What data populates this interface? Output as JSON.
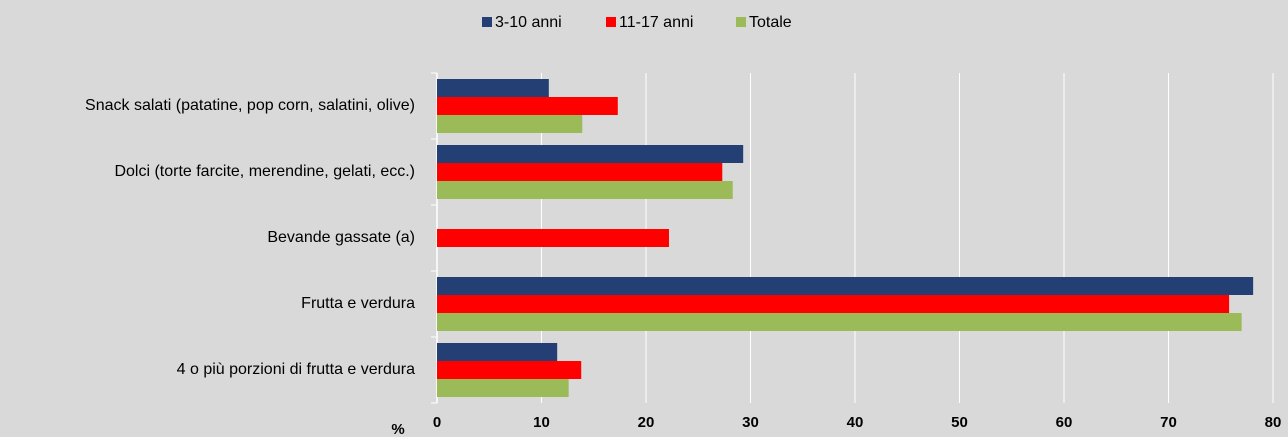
{
  "chart_data": {
    "type": "hbar",
    "categories": [
      "Snack salati (patatine, pop corn, salatini, olive)",
      "Dolci (torte farcite, merendine, gelati, ecc.)",
      "Bevande gassate (a)",
      "Frutta e verdura",
      "4 o più porzioni di frutta e verdura"
    ],
    "series": [
      {
        "name": "3-10 anni",
        "color": "#243f74",
        "values": [
          10.7,
          29.3,
          null,
          78.1,
          11.5
        ]
      },
      {
        "name": "11-17 anni",
        "color": "#ff0000",
        "values": [
          17.3,
          27.3,
          22.2,
          75.8,
          13.8
        ]
      },
      {
        "name": "Totale",
        "color": "#9bbb59",
        "values": [
          13.9,
          28.3,
          null,
          77.0,
          12.6
        ]
      }
    ],
    "x_label": "%",
    "xlim": [
      0,
      80
    ],
    "xticks": [
      0,
      10,
      20,
      30,
      40,
      50,
      60,
      70,
      80
    ],
    "grid": true
  }
}
